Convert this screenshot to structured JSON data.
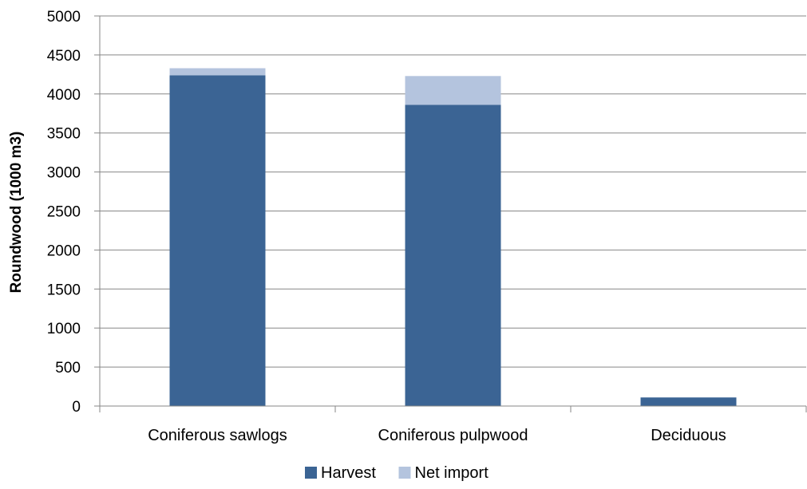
{
  "chart_data": {
    "type": "bar",
    "stacked": true,
    "categories": [
      "Coniferous sawlogs",
      "Coniferous pulpwood",
      "Deciduous"
    ],
    "series": [
      {
        "name": "Harvest",
        "values": [
          4240,
          3860,
          110
        ],
        "color": "#3B6494"
      },
      {
        "name": "Net import",
        "values": [
          90,
          370,
          0
        ],
        "color": "#B4C4DE"
      }
    ],
    "title": "",
    "xlabel": "",
    "ylabel": "Roundwood (1000 m3)",
    "ylim": [
      0,
      5000
    ],
    "yticks": [
      0,
      500,
      1000,
      1500,
      2000,
      2500,
      3000,
      3500,
      4000,
      4500,
      5000
    ],
    "grid": true,
    "legend": "bottom-center"
  }
}
